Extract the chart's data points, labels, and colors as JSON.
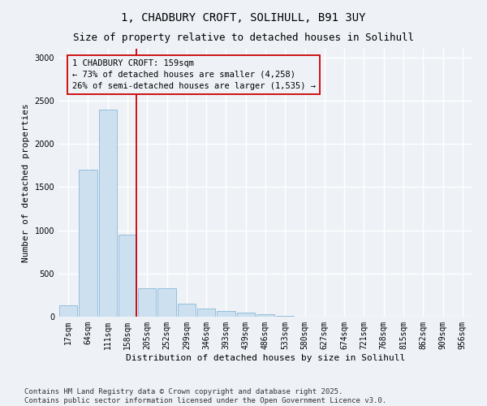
{
  "title_line1": "1, CHADBURY CROFT, SOLIHULL, B91 3UY",
  "title_line2": "Size of property relative to detached houses in Solihull",
  "xlabel": "Distribution of detached houses by size in Solihull",
  "ylabel": "Number of detached properties",
  "categories": [
    "17sqm",
    "64sqm",
    "111sqm",
    "158sqm",
    "205sqm",
    "252sqm",
    "299sqm",
    "346sqm",
    "393sqm",
    "439sqm",
    "486sqm",
    "533sqm",
    "580sqm",
    "627sqm",
    "674sqm",
    "721sqm",
    "768sqm",
    "815sqm",
    "862sqm",
    "909sqm",
    "956sqm"
  ],
  "values": [
    130,
    1700,
    2400,
    950,
    330,
    325,
    155,
    95,
    70,
    45,
    25,
    8,
    4,
    2,
    0,
    0,
    0,
    0,
    0,
    0,
    0
  ],
  "bar_color": "#cce0f0",
  "bar_edge_color": "#8ab8d8",
  "highlight_bar_index": 3,
  "highlight_color": "#cc0000",
  "annotation_text": "1 CHADBURY CROFT: 159sqm\n← 73% of detached houses are smaller (4,258)\n26% of semi-detached houses are larger (1,535) →",
  "ylim": [
    0,
    3100
  ],
  "yticks": [
    0,
    500,
    1000,
    1500,
    2000,
    2500,
    3000
  ],
  "footer_line1": "Contains HM Land Registry data © Crown copyright and database right 2025.",
  "footer_line2": "Contains public sector information licensed under the Open Government Licence v3.0.",
  "background_color": "#eef2f7",
  "grid_color": "#ffffff",
  "title_fontsize": 10,
  "subtitle_fontsize": 9,
  "axis_label_fontsize": 8,
  "tick_fontsize": 7,
  "annotation_fontsize": 7.5,
  "footer_fontsize": 6.5
}
